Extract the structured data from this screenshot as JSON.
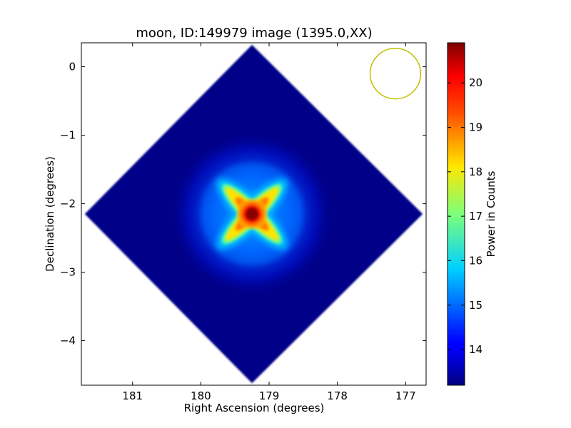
{
  "chart_data": {
    "type": "heatmap",
    "title": "moon, ID:149979 image (1395.0,XX)",
    "xlabel": "Right Ascension (degrees)",
    "ylabel": "Declination (degrees)",
    "xlim": [
      181.75,
      176.7
    ],
    "ylim": [
      -4.65,
      0.35
    ],
    "x_axis_inverted": true,
    "x_ticks": [
      181,
      180,
      179,
      178,
      177
    ],
    "x_tick_labels": [
      "181",
      "180",
      "179",
      "178",
      "177"
    ],
    "y_ticks": [
      0,
      -1,
      -2,
      -3,
      -4
    ],
    "y_tick_labels": [
      "0",
      "−1",
      "−2",
      "−3",
      "−4"
    ],
    "grid": false,
    "colormap": "jet",
    "colorbar": {
      "label": "Power in Counts",
      "range": [
        13.2,
        20.9
      ],
      "ticks": [
        14,
        15,
        16,
        17,
        18,
        19,
        20
      ],
      "tick_labels": [
        "14",
        "15",
        "16",
        "17",
        "18",
        "19",
        "20"
      ]
    },
    "image_footprint": {
      "shape": "diamond",
      "center": [
        179.25,
        -2.15
      ],
      "vertices": [
        [
          179.25,
          0.32
        ],
        [
          176.75,
          -2.15
        ],
        [
          179.25,
          -4.62
        ],
        [
          181.7,
          -2.15
        ]
      ],
      "background_level": 13.3
    },
    "peak": {
      "ra": 179.25,
      "dec": -2.15,
      "value": 20.8,
      "structure": "four-armed cross (diagonal arms)"
    },
    "beam_circle": {
      "center": [
        177.15,
        -0.1
      ],
      "radius_deg": 0.37,
      "color": "#c0c000"
    }
  }
}
